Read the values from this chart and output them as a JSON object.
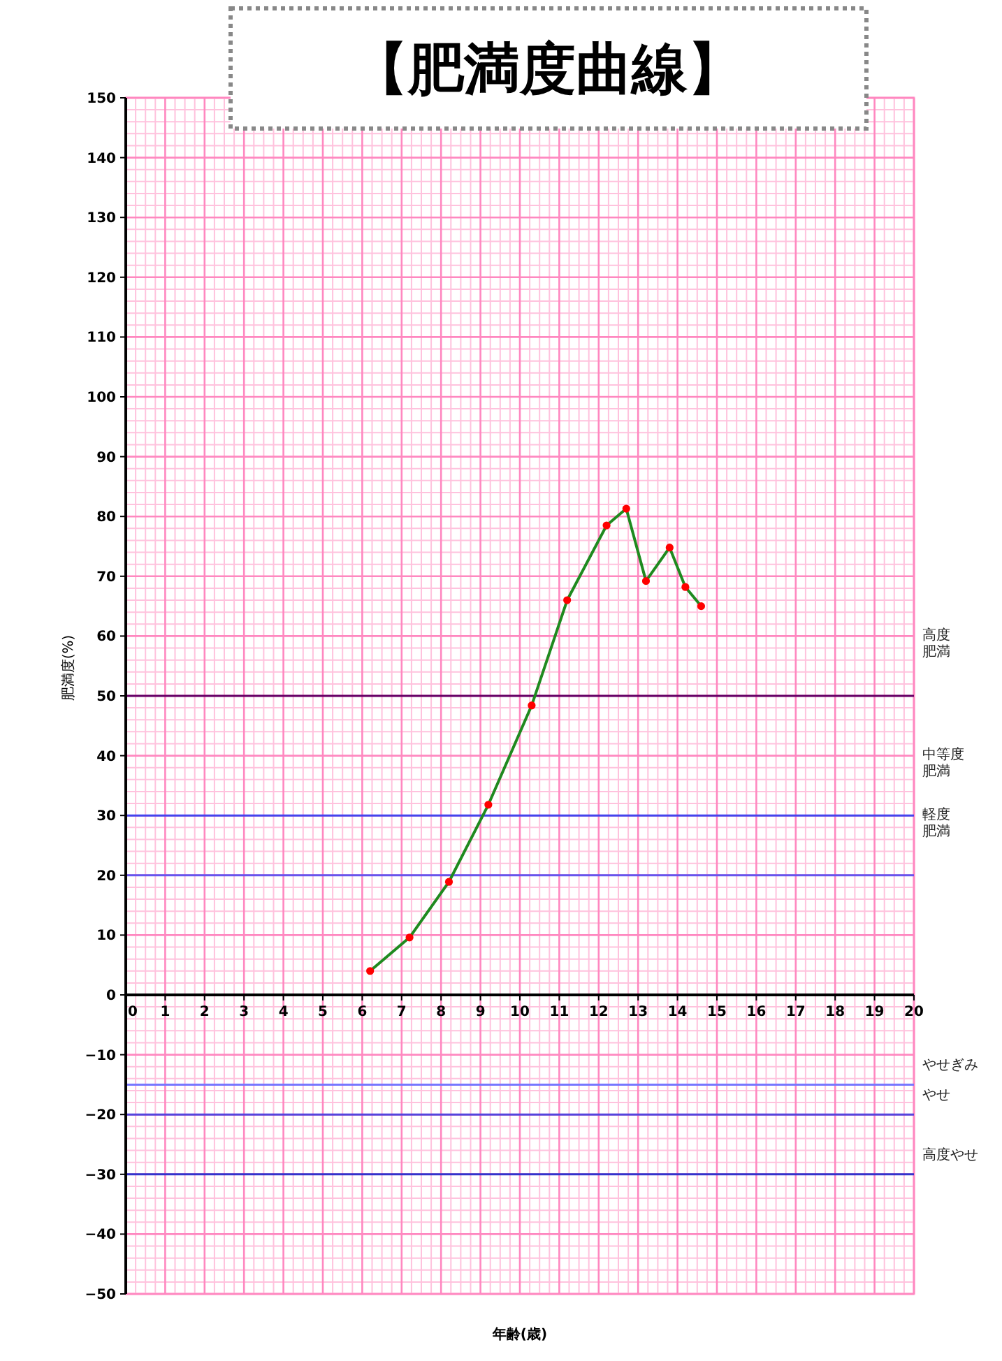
{
  "chart_data": {
    "type": "line",
    "title": "【肥満度曲線】",
    "xlabel": "年齢(歳)",
    "ylabel": "肥満度(%)",
    "xlim": [
      0,
      20
    ],
    "xticks": [
      0,
      {
        "value": 0.25,
        "label": null
      },
      {
        "value": 0.5,
        "label": null
      },
      {
        "value": 0.75,
        "label": null
      },
      1,
      {
        "value": 1.25,
        "label": null
      },
      {
        "value": 1.5,
        "label": null
      },
      {
        "value": 1.75,
        "label": null
      },
      2,
      {
        "value": 2.25,
        "label": null
      },
      {
        "value": 2.5,
        "label": null
      },
      {
        "value": 2.75,
        "label": null
      },
      3,
      {
        "value": 3.25,
        "label": null
      },
      {
        "value": 3.5,
        "label": null
      },
      {
        "value": 3.75,
        "label": null
      },
      4,
      {
        "value": 4.25,
        "label": null
      },
      {
        "value": 4.5,
        "label": null
      },
      {
        "value": 4.75,
        "label": null
      },
      5,
      {
        "value": 5.25,
        "label": null
      },
      {
        "value": 5.5,
        "label": null
      },
      {
        "value": 5.75,
        "label": null
      },
      6,
      {
        "value": 6.25,
        "label": null
      },
      {
        "value": 6.5,
        "label": null
      },
      {
        "value": 6.75,
        "label": null
      },
      7,
      {
        "value": 7.25,
        "label": null
      },
      {
        "value": 7.5,
        "label": null
      },
      {
        "value": 7.75,
        "label": null
      },
      8,
      {
        "value": 8.25,
        "label": null
      },
      {
        "value": 8.5,
        "label": null
      },
      {
        "value": 8.75,
        "label": null
      },
      9,
      {
        "value": 9.25,
        "label": null
      },
      {
        "value": 9.5,
        "label": null
      },
      {
        "value": 9.75,
        "label": null
      },
      10,
      {
        "value": 10.25,
        "label": null
      },
      {
        "value": 10.5,
        "label": null
      },
      {
        "value": 10.75,
        "label": null
      },
      11,
      {
        "value": 11.25,
        "label": null
      },
      {
        "value": 11.5,
        "label": null
      },
      {
        "value": 11.75,
        "label": null
      },
      12,
      {
        "value": 12.25,
        "label": null
      },
      {
        "value": 12.5,
        "label": null
      },
      {
        "value": 12.75,
        "label": null
      },
      13,
      {
        "value": 13.25,
        "label": null
      },
      {
        "value": 13.5,
        "label": null
      },
      {
        "value": 13.75,
        "label": null
      },
      14,
      {
        "value": 14.25,
        "label": null
      },
      {
        "value": 14.5,
        "label": null
      },
      {
        "value": 14.75,
        "label": null
      },
      15,
      {
        "value": 15.25,
        "label": null
      },
      {
        "value": 15.5,
        "label": null
      },
      {
        "value": 15.75,
        "label": null
      },
      16,
      {
        "value": 16.25,
        "label": null
      },
      {
        "value": 16.5,
        "label": null
      },
      {
        "value": 16.75,
        "label": null
      },
      17,
      {
        "value": 17.25,
        "label": null
      },
      {
        "value": 17.5,
        "label": null
      },
      {
        "value": 17.75,
        "label": null
      },
      18,
      {
        "value": 18.25,
        "label": null
      },
      {
        "value": 18.5,
        "label": null
      },
      {
        "value": 18.75,
        "label": null
      },
      19,
      {
        "value": 19.25,
        "label": null
      },
      {
        "value": 19.5,
        "label": null
      },
      {
        "value": 19.75,
        "label": null
      },
      20
    ],
    "ylim": [
      -50,
      150
    ],
    "yticks": [
      -50,
      {
        "value": -48,
        "label": null
      },
      {
        "value": -46,
        "label": null
      },
      {
        "value": -44,
        "label": null
      },
      {
        "value": -42,
        "label": null
      },
      -40,
      {
        "value": -38,
        "label": null
      },
      {
        "value": -36,
        "label": null
      },
      {
        "value": -34,
        "label": null
      },
      {
        "value": -32,
        "label": null
      },
      -30,
      {
        "value": -28,
        "label": null
      },
      {
        "value": -26,
        "label": null
      },
      {
        "value": -24,
        "label": null
      },
      {
        "value": -22,
        "label": null
      },
      -20,
      {
        "value": -18,
        "label": null
      },
      {
        "value": -16,
        "label": null
      },
      {
        "value": -14,
        "label": null
      },
      {
        "value": -12,
        "label": null
      },
      -10,
      {
        "value": -8,
        "label": null
      },
      {
        "value": -6,
        "label": null
      },
      {
        "value": -4,
        "label": null
      },
      {
        "value": -2,
        "label": null
      },
      0,
      {
        "value": 2,
        "label": null
      },
      {
        "value": 4,
        "label": null
      },
      {
        "value": 6,
        "label": null
      },
      {
        "value": 8,
        "label": null
      },
      10,
      {
        "value": 12,
        "label": null
      },
      {
        "value": 14,
        "label": null
      },
      {
        "value": 16,
        "label": null
      },
      {
        "value": 18,
        "label": null
      },
      20,
      {
        "value": 22,
        "label": null
      },
      {
        "value": 24,
        "label": null
      },
      {
        "value": 26,
        "label": null
      },
      {
        "value": 28,
        "label": null
      },
      30,
      {
        "value": 32,
        "label": null
      },
      {
        "value": 34,
        "label": null
      },
      {
        "value": 36,
        "label": null
      },
      {
        "value": 38,
        "label": null
      },
      40,
      {
        "value": 42,
        "label": null
      },
      {
        "value": 44,
        "label": null
      },
      {
        "value": 46,
        "label": null
      },
      {
        "value": 48,
        "label": null
      },
      50,
      {
        "value": 52,
        "label": null
      },
      {
        "value": 54,
        "label": null
      },
      {
        "value": 56,
        "label": null
      },
      {
        "value": 58,
        "label": null
      },
      60,
      {
        "value": 62,
        "label": null
      },
      {
        "value": 64,
        "label": null
      },
      {
        "value": 66,
        "label": null
      },
      {
        "value": 68,
        "label": null
      },
      70,
      {
        "value": 72,
        "label": null
      },
      {
        "value": 74,
        "label": null
      },
      {
        "value": 76,
        "label": null
      },
      {
        "value": 78,
        "label": null
      },
      80,
      {
        "value": 82,
        "label": null
      },
      {
        "value": 84,
        "label": null
      },
      {
        "value": 86,
        "label": null
      },
      {
        "value": 88,
        "label": null
      },
      90,
      {
        "value": 92,
        "label": null
      },
      {
        "value": 94,
        "label": null
      },
      {
        "value": 96,
        "label": null
      },
      {
        "value": 98,
        "label": null
      },
      100,
      {
        "value": 102,
        "label": null
      },
      {
        "value": 104,
        "label": null
      },
      {
        "value": 106,
        "label": null
      },
      {
        "value": 108,
        "label": null
      },
      110,
      {
        "value": 112,
        "label": null
      },
      {
        "value": 114,
        "label": null
      },
      {
        "value": 116,
        "label": null
      },
      {
        "value": 118,
        "label": null
      },
      120,
      {
        "value": 122,
        "label": null
      },
      {
        "value": 124,
        "label": null
      },
      {
        "value": 126,
        "label": null
      },
      {
        "value": 128,
        "label": null
      },
      130,
      {
        "value": 132,
        "label": null
      },
      {
        "value": 134,
        "label": null
      },
      {
        "value": 136,
        "label": null
      },
      {
        "value": 138,
        "label": null
      },
      140,
      {
        "value": 142,
        "label": null
      },
      {
        "value": 144,
        "label": null
      },
      {
        "value": 146,
        "label": null
      },
      {
        "value": 148,
        "label": null
      },
      150
    ],
    "grid": true,
    "marker": "circle",
    "line_style": "solid",
    "series": [
      {
        "x": [
          6.2,
          7.2,
          8.2,
          9.2,
          10.3,
          11.2,
          12.2,
          12.7,
          13.2,
          13.8,
          14.2,
          14.6
        ],
        "values": [
          4,
          9.6,
          18.9,
          31.8,
          48.4,
          66,
          78.5,
          81.3,
          69.2,
          74.8,
          68.2,
          65
        ],
        "color": "#1f8a1f",
        "colors": [
          "#ff0000",
          "#ff0000",
          "#ff0000",
          "#ff0000",
          "#ff0000",
          "#ff0000",
          "#ff0000",
          "#ff0000",
          "#ff0000",
          "#ff0000",
          "#ff0000",
          "#ff0000"
        ]
      }
    ],
    "ref_lines": [
      {
        "axis": "y",
        "value": 50,
        "label": "高度肥満",
        "color": "#660066"
      },
      {
        "axis": "y",
        "value": 30,
        "label": "中等度肥満",
        "color": "#4444ee"
      },
      {
        "axis": "y",
        "value": 20,
        "label": "軽度肥満",
        "color": "#6655ee"
      },
      {
        "axis": "y",
        "value": -15,
        "label": "やせぎみ",
        "color": "#7777ff"
      },
      {
        "axis": "y",
        "value": -20,
        "label": "やせ",
        "color": "#5544dd"
      },
      {
        "axis": "y",
        "value": -30,
        "label": "高度やせ",
        "color": "#3333cc"
      }
    ]
  }
}
